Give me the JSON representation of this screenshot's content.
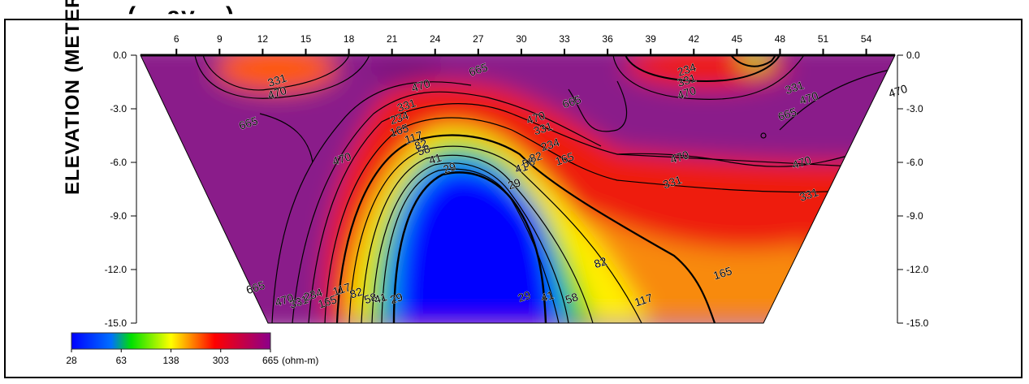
{
  "header": {
    "title_fragment": "(... ay ...)"
  },
  "chart_data": {
    "type": "heatmap",
    "title": "",
    "xlabel": "",
    "ylabel": "ELEVATION (METER)",
    "x_ticks": [
      6,
      9,
      12,
      15,
      18,
      21,
      24,
      27,
      30,
      33,
      36,
      39,
      42,
      45,
      48,
      51,
      54
    ],
    "y_ticks": [
      "0.0",
      "-3.0",
      "-6.0",
      "-9.0",
      "-12.0",
      "-15.0"
    ],
    "xlim": [
      3.5,
      56
    ],
    "ylim": [
      -15,
      0
    ],
    "colorbar": {
      "labels": [
        "28",
        "63",
        "138",
        "303",
        "665"
      ],
      "unit": "(ohm-m)",
      "colors": [
        "#0000ff",
        "#00ff00",
        "#ffff00",
        "#ff0000",
        "#8b008b"
      ]
    },
    "contour_levels": [
      23,
      29,
      41,
      58,
      82,
      117,
      165,
      234,
      331,
      470,
      665
    ],
    "contour_labels": [
      {
        "text": "665",
        "x": 27,
        "y": -0.8
      },
      {
        "text": "470",
        "x": 23,
        "y": -1.7
      },
      {
        "text": "331",
        "x": 13,
        "y": -1.4
      },
      {
        "text": "470",
        "x": 13,
        "y": -2.1
      },
      {
        "text": "665",
        "x": 11,
        "y": -3.8
      },
      {
        "text": "665",
        "x": 33.5,
        "y": -2.6
      },
      {
        "text": "470",
        "x": 31,
        "y": -3.5
      },
      {
        "text": "331",
        "x": 31.5,
        "y": -4.1
      },
      {
        "text": "234",
        "x": 32,
        "y": -5.0
      },
      {
        "text": "165",
        "x": 33,
        "y": -5.8
      },
      {
        "text": "234",
        "x": 41.5,
        "y": -0.8
      },
      {
        "text": "331",
        "x": 41.5,
        "y": -1.4
      },
      {
        "text": "470",
        "x": 41.5,
        "y": -2.1
      },
      {
        "text": "331",
        "x": 49,
        "y": -1.8
      },
      {
        "text": "470",
        "x": 50,
        "y": -2.4
      },
      {
        "text": "665",
        "x": 48.5,
        "y": -3.3
      },
      {
        "text": "470",
        "x": 56.2,
        "y": -2.0
      },
      {
        "text": "470",
        "x": 41,
        "y": -5.7
      },
      {
        "text": "470",
        "x": 49.5,
        "y": -6.0
      },
      {
        "text": "331",
        "x": 40.5,
        "y": -7.1
      },
      {
        "text": "331",
        "x": 50,
        "y": -7.8
      },
      {
        "text": "470",
        "x": 17.5,
        "y": -5.8
      },
      {
        "text": "331",
        "x": 22,
        "y": -2.8
      },
      {
        "text": "234",
        "x": 21.5,
        "y": -3.5
      },
      {
        "text": "165",
        "x": 21.5,
        "y": -4.2
      },
      {
        "text": "117",
        "x": 22.5,
        "y": -4.6
      },
      {
        "text": "82",
        "x": 23,
        "y": -5.0
      },
      {
        "text": "58",
        "x": 23.2,
        "y": -5.3
      },
      {
        "text": "41",
        "x": 24,
        "y": -5.8
      },
      {
        "text": "29",
        "x": 25,
        "y": -6.3
      },
      {
        "text": "29",
        "x": 29.5,
        "y": -7.2
      },
      {
        "text": "41",
        "x": 30,
        "y": -6.3
      },
      {
        "text": "58",
        "x": 30.5,
        "y": -6.0
      },
      {
        "text": "82",
        "x": 31,
        "y": -5.7
      },
      {
        "text": "665",
        "x": 11.5,
        "y": -13.0
      },
      {
        "text": "470",
        "x": 13.5,
        "y": -13.7
      },
      {
        "text": "331",
        "x": 14.5,
        "y": -13.8
      },
      {
        "text": "234",
        "x": 15.5,
        "y": -13.4
      },
      {
        "text": "165",
        "x": 16.5,
        "y": -13.8
      },
      {
        "text": "117",
        "x": 17.5,
        "y": -13.1
      },
      {
        "text": "82",
        "x": 18.5,
        "y": -13.3
      },
      {
        "text": "58",
        "x": 19.5,
        "y": -13.6
      },
      {
        "text": "41",
        "x": 20.2,
        "y": -13.6
      },
      {
        "text": "29",
        "x": 21.3,
        "y": -13.6
      },
      {
        "text": "29",
        "x": 30.2,
        "y": -13.5
      },
      {
        "text": "41",
        "x": 31.8,
        "y": -13.5
      },
      {
        "text": "58",
        "x": 33.5,
        "y": -13.6
      },
      {
        "text": "82",
        "x": 35.5,
        "y": -11.6
      },
      {
        "text": "117",
        "x": 38.5,
        "y": -13.7
      },
      {
        "text": "165",
        "x": 44,
        "y": -12.2
      }
    ]
  }
}
